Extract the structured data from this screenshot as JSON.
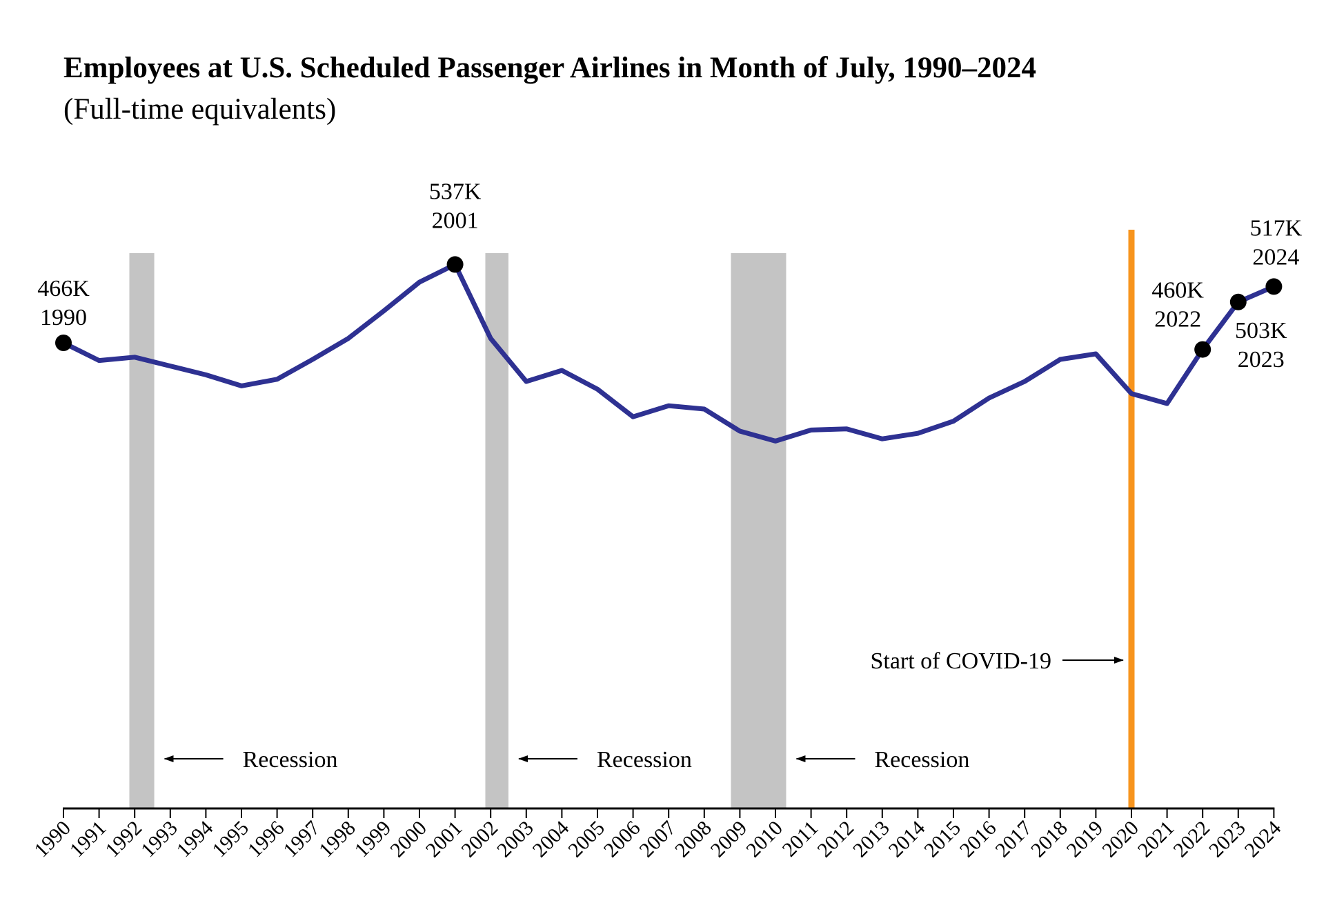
{
  "chart_data": {
    "type": "line",
    "title": "Employees at U.S. Scheduled Passenger Airlines in Month of July, 1990–2024",
    "subtitle": "(Full-time equivalents)",
    "xlabel": "",
    "ylabel": "",
    "ylim": [
      0,
      600
    ],
    "grid": false,
    "legend": "none",
    "categories": [
      "1990",
      "1991",
      "1992",
      "1993",
      "1994",
      "1995",
      "1996",
      "1997",
      "1998",
      "1999",
      "2000",
      "2001",
      "2002",
      "2003",
      "2004",
      "2005",
      "2006",
      "2007",
      "2008",
      "2009",
      "2010",
      "2011",
      "2012",
      "2013",
      "2014",
      "2015",
      "2016",
      "2017",
      "2018",
      "2019",
      "2020",
      "2021",
      "2022",
      "2023",
      "2024"
    ],
    "series": [
      {
        "name": "Employees (thousands, FTE)",
        "color": "#2e3192",
        "values": [
          466,
          450,
          453,
          445,
          437,
          427,
          433,
          451,
          470,
          495,
          521,
          537,
          470,
          431,
          441,
          424,
          399,
          409,
          406,
          386,
          377,
          387,
          388,
          379,
          384,
          395,
          416,
          431,
          451,
          456,
          420,
          411,
          460,
          503,
          517
        ]
      }
    ],
    "highlighted_points": [
      {
        "year": "1990",
        "value_label": "466K",
        "year_label": "1990"
      },
      {
        "year": "2001",
        "value_label": "537K",
        "year_label": "2001"
      },
      {
        "year": "2022",
        "value_label": "460K",
        "year_label": "2022"
      },
      {
        "year": "2023",
        "value_label": "503K",
        "year_label": "2023"
      },
      {
        "year": "2024",
        "value_label": "517K",
        "year_label": "2024"
      }
    ],
    "recessions": [
      {
        "start": 1991.85,
        "end": 1992.55,
        "label": "Recession"
      },
      {
        "start": 2001.85,
        "end": 2002.5,
        "label": "Recession"
      },
      {
        "start": 2008.75,
        "end": 2010.3,
        "label": "Recession"
      }
    ],
    "events": [
      {
        "year": 2020,
        "label": "Start of COVID-19",
        "color": "#f7941d"
      }
    ],
    "recession_color": "#c4c4c4"
  }
}
